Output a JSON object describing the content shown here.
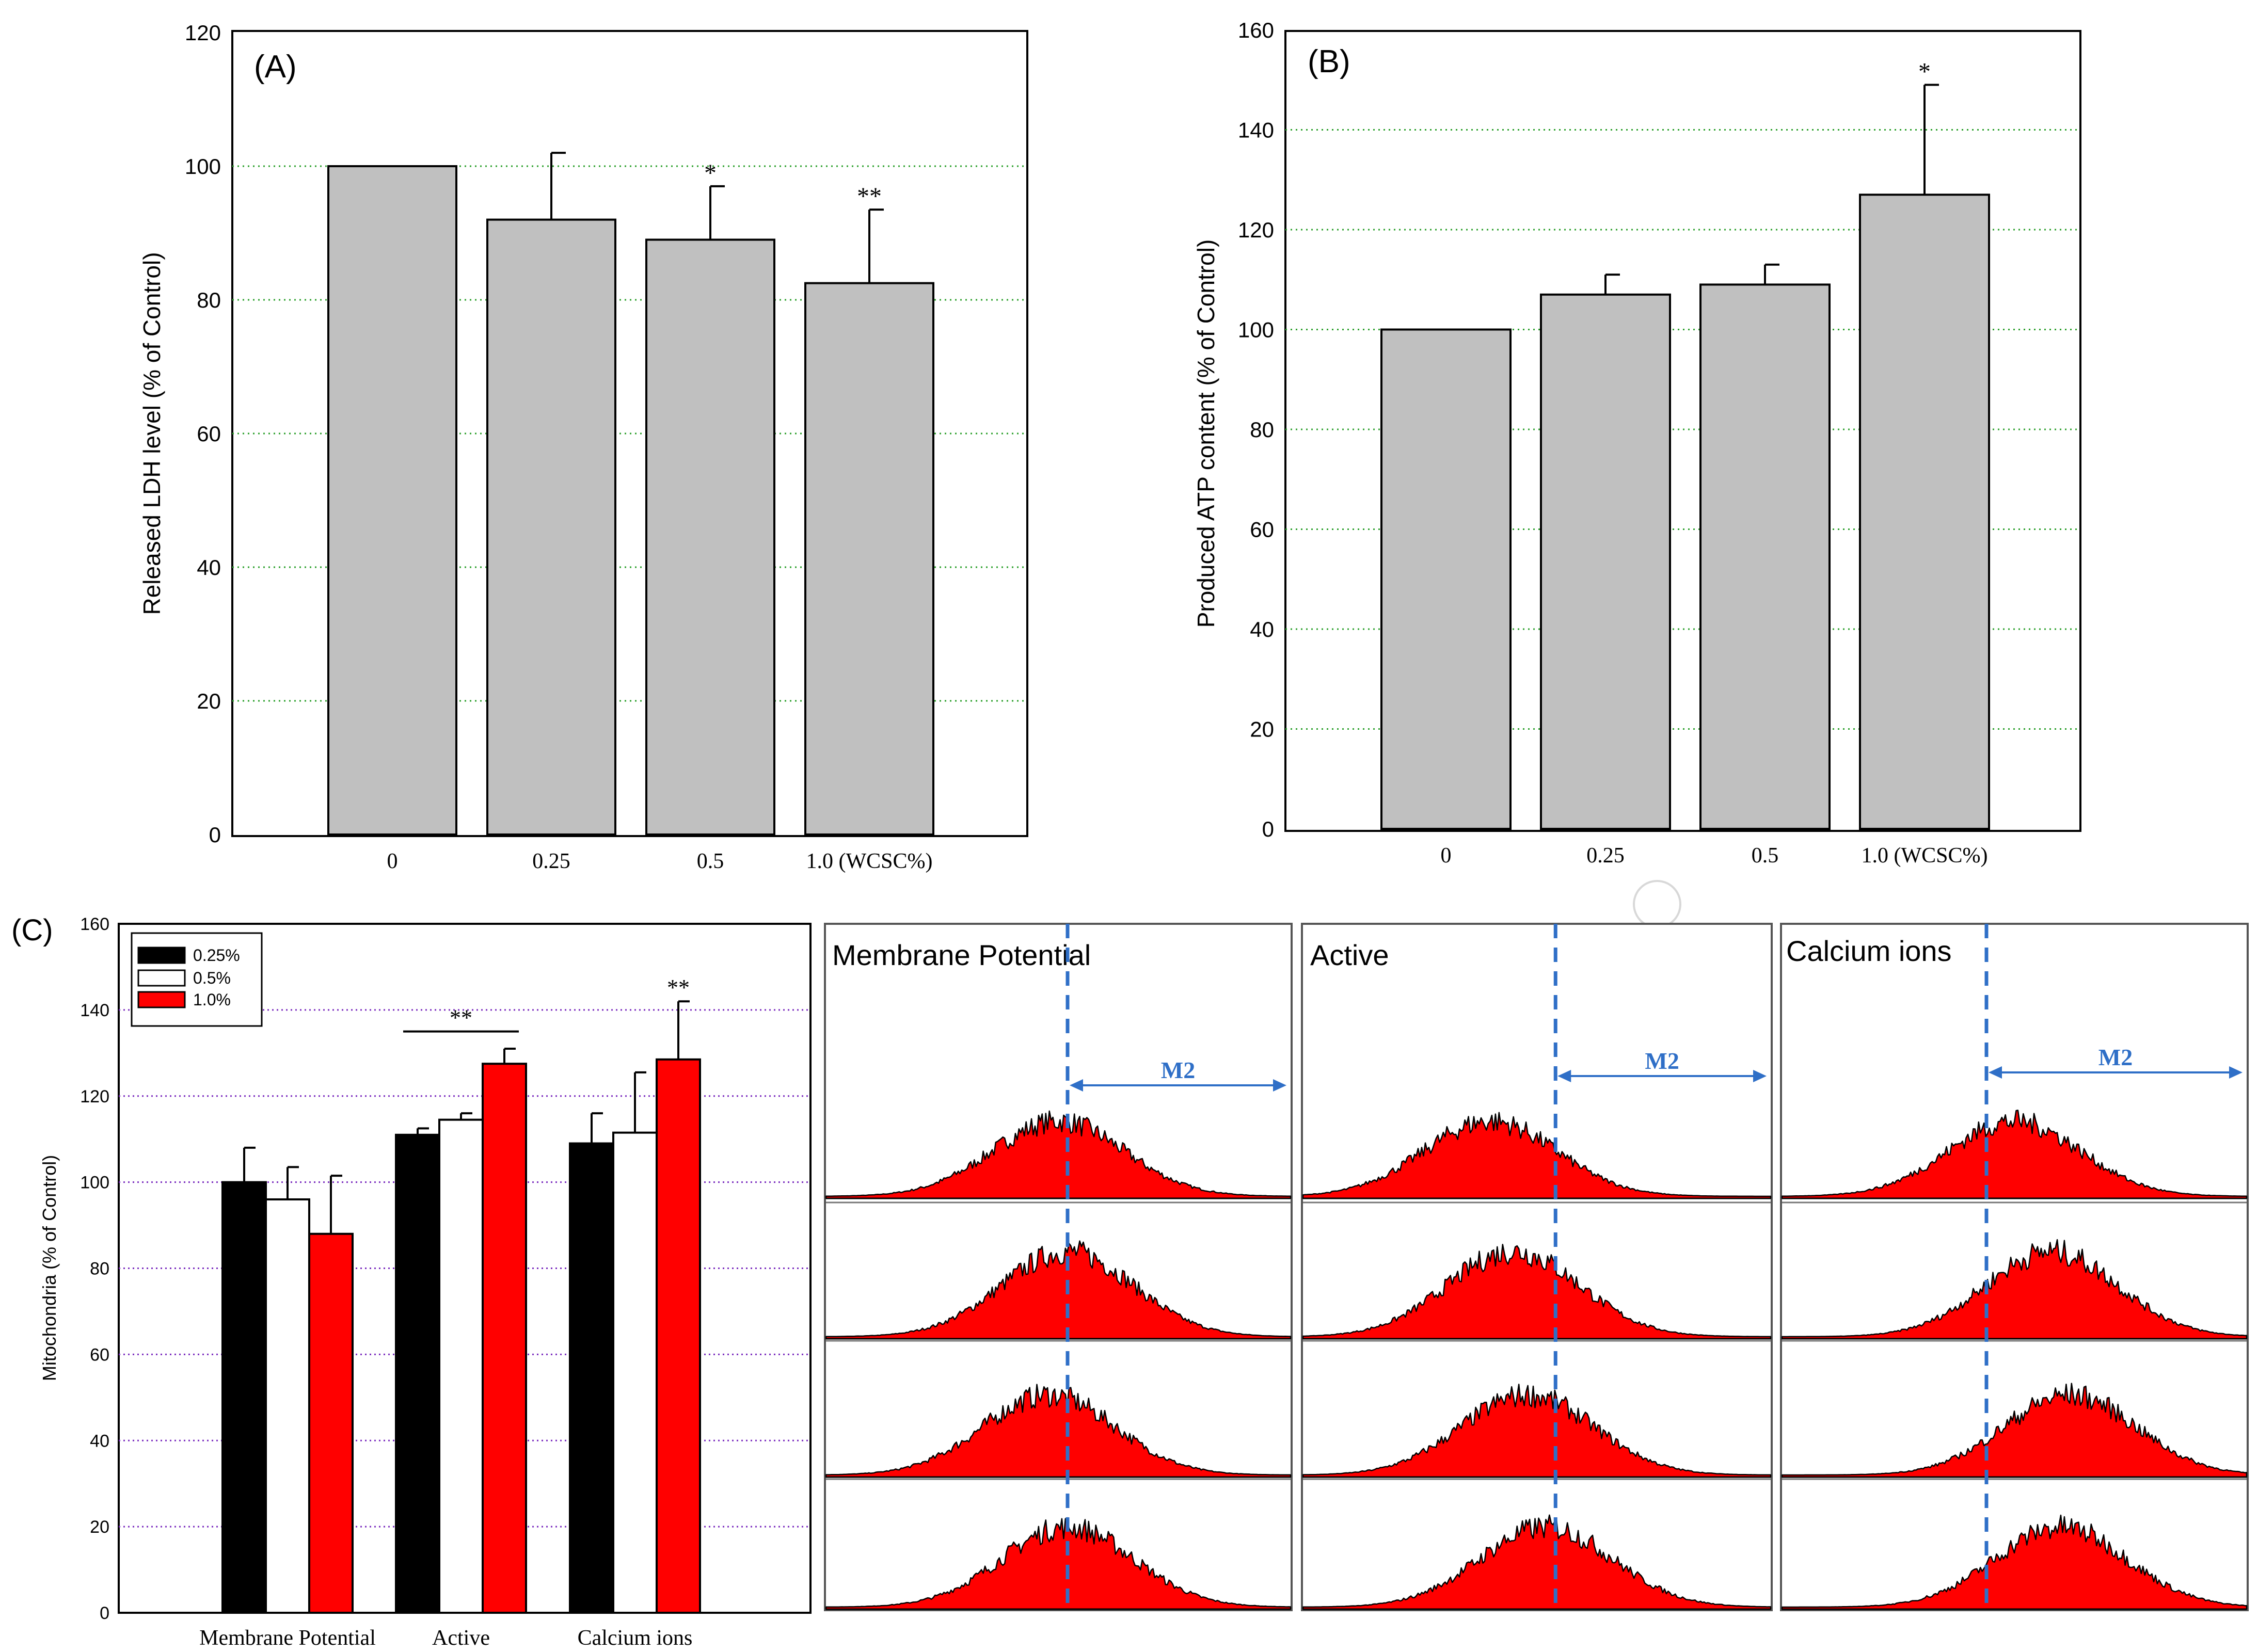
{
  "chart_data": [
    {
      "panel": "(A)",
      "type": "bar",
      "categories": [
        "0",
        "0.25",
        "0.5",
        "1.0 (WCSC%)"
      ],
      "values": [
        100,
        92,
        89,
        82.5
      ],
      "errors": [
        0,
        10,
        8,
        11
      ],
      "significance": [
        "",
        "",
        "*",
        "**"
      ],
      "ylabel": "Released LDH level (% of Control)",
      "xlabel": "",
      "ylim": [
        0,
        120
      ],
      "yticks": [
        "0",
        "20",
        "40",
        "60",
        "80",
        "100",
        "120"
      ],
      "grid": "horizontal dotted green",
      "bar_color": "#c0c0c0"
    },
    {
      "panel": "(B)",
      "type": "bar",
      "categories": [
        "0",
        "0.25",
        "0.5",
        "1.0 (WCSC%)"
      ],
      "values": [
        100,
        107,
        109,
        127
      ],
      "errors": [
        0,
        4,
        4,
        22
      ],
      "significance": [
        "",
        "",
        "",
        "*"
      ],
      "ylabel": "Produced ATP content (% of Control)",
      "xlabel": "",
      "ylim": [
        0,
        160
      ],
      "yticks": [
        "0",
        "20",
        "40",
        "60",
        "80",
        "100",
        "120",
        "140",
        "160"
      ],
      "grid": "horizontal dotted green",
      "bar_color": "#c0c0c0"
    },
    {
      "panel": "(C)",
      "type": "bar",
      "categories": [
        "Membrane Potential",
        "Active",
        "Calcium ions"
      ],
      "series": [
        {
          "name": "0.25%",
          "values": [
            100,
            111,
            109
          ],
          "errors": [
            8,
            1.5,
            7
          ],
          "color": "#000000"
        },
        {
          "name": "0.5%",
          "values": [
            96,
            114.5,
            111.5
          ],
          "errors": [
            7.5,
            1.5,
            14
          ],
          "color": "#ffffff"
        },
        {
          "name": "1.0%",
          "values": [
            88,
            127.5,
            128.5
          ],
          "errors": [
            13.5,
            3.5,
            13.5
          ],
          "color": "#ff0000"
        }
      ],
      "significance": [
        {
          "label": "**",
          "category": "Active",
          "spans_series": true
        },
        {
          "label": "**",
          "category": "Calcium ions",
          "series": "1.0%"
        }
      ],
      "ylabel": "Mitochondria (% of Control)",
      "xlabel": "",
      "ylim": [
        0,
        160
      ],
      "yticks": [
        "0",
        "20",
        "40",
        "60",
        "80",
        "100",
        "120",
        "140",
        "160"
      ],
      "grid": "horizontal dotted purple",
      "legend": "top-left"
    }
  ],
  "histograms": {
    "columns": [
      "Membrane Potential",
      "Active",
      "Calcium ions"
    ],
    "gate_label": "M2",
    "rows": 4,
    "fill_color": "#ff0000",
    "gate_color": "#2f6fc7",
    "gate_position": [
      0.52,
      0.54,
      0.44
    ],
    "peak_position": [
      [
        0.5,
        0.52,
        0.48,
        0.52
      ],
      [
        0.4,
        0.45,
        0.48,
        0.52
      ],
      [
        0.5,
        0.58,
        0.62,
        0.6
      ]
    ]
  }
}
